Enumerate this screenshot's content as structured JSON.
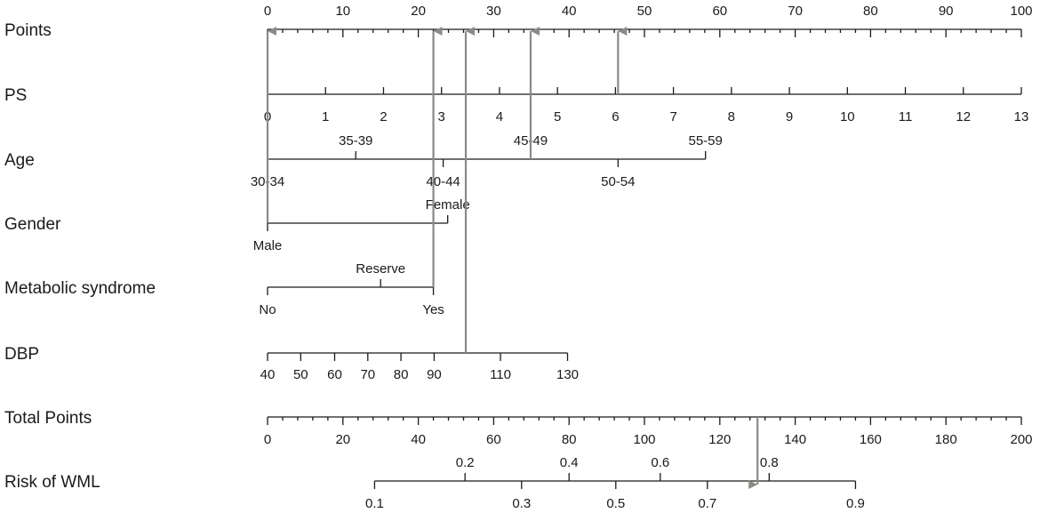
{
  "chart_data": {
    "type": "nomogram",
    "scales": [
      {
        "id": "points",
        "label": "Points",
        "axis": [
          0,
          100
        ],
        "ticks": [
          0,
          10,
          20,
          30,
          40,
          50,
          60,
          70,
          80,
          90,
          100
        ],
        "minor_step": 2,
        "ticks_above": true
      },
      {
        "id": "ps",
        "label": "PS",
        "points_range": [
          0,
          100
        ],
        "values": [
          0,
          1,
          2,
          3,
          4,
          5,
          6,
          7,
          8,
          9,
          10,
          11,
          12,
          13
        ]
      },
      {
        "id": "age",
        "label": "Age",
        "levels": [
          {
            "text": "30-34",
            "points": 0
          },
          {
            "text": "35-39",
            "points": 11.7
          },
          {
            "text": "40-44",
            "points": 23.3
          },
          {
            "text": "45-49",
            "points": 34.9
          },
          {
            "text": "50-54",
            "points": 46.5
          },
          {
            "text": "55-59",
            "points": 58.1
          }
        ],
        "label_above": [
          1,
          3,
          5
        ],
        "label_below": [
          0,
          2,
          4
        ]
      },
      {
        "id": "gender",
        "label": "Gender",
        "levels": [
          {
            "text": "Male",
            "points": 0
          },
          {
            "text": "Female",
            "points": 23.9
          }
        ],
        "label_above": [
          1
        ],
        "label_below": [
          0
        ]
      },
      {
        "id": "metabolic",
        "label": "Metabolic syndrome",
        "levels": [
          {
            "text": "No",
            "points": 0
          },
          {
            "text": "Reserve",
            "points": 15
          },
          {
            "text": "Yes",
            "points": 22
          }
        ],
        "label_above": [
          1
        ],
        "label_below": [
          0,
          2
        ]
      },
      {
        "id": "dbp",
        "label": "DBP",
        "values": [
          40,
          50,
          60,
          70,
          80,
          90,
          110,
          130
        ],
        "value_points": [
          0,
          4.4,
          8.9,
          13.3,
          17.7,
          22.1,
          30.9,
          39.8
        ]
      },
      {
        "id": "total",
        "label": "Total Points",
        "axis": [
          0,
          200
        ],
        "ticks": [
          0,
          20,
          40,
          60,
          80,
          100,
          120,
          140,
          160,
          180,
          200
        ],
        "minor_step": 4
      },
      {
        "id": "risk",
        "label": "Risk of WML",
        "values": [
          0.1,
          0.2,
          0.3,
          0.4,
          0.5,
          0.6,
          0.7,
          0.8,
          0.9
        ],
        "value_total_points": [
          28.4,
          52.4,
          67.4,
          80,
          92.4,
          104.2,
          116.7,
          133.1,
          156
        ],
        "label_above": [
          1,
          3,
          5,
          7
        ],
        "label_below": [
          0,
          2,
          4,
          6,
          8
        ]
      }
    ],
    "example": {
      "predictor_points": [
        {
          "scale": "gender",
          "points": 0
        },
        {
          "scale": "metabolic",
          "points": 22
        },
        {
          "scale": "dbp",
          "points": 26.3
        },
        {
          "scale": "age",
          "points": 34.9
        },
        {
          "scale": "ps",
          "points": 46.5
        }
      ],
      "total_points": 130,
      "risk_arrow_from": "total",
      "risk_arrow_to": "risk"
    },
    "colors": {
      "line": "#1a1a1a",
      "arrow": "#8c8a86"
    }
  }
}
